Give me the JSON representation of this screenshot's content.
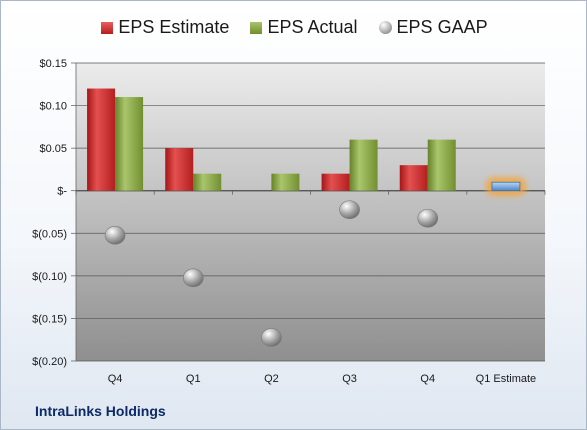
{
  "chart_data": {
    "type": "bar",
    "categories": [
      "Q4",
      "Q1",
      "Q2",
      "Q3",
      "Q4",
      "Q1 Estimate"
    ],
    "y_tick_labels": [
      "$0.15",
      "$0.10",
      "$0.05",
      "$-",
      "$(0.05)",
      "$(0.10)",
      "$(0.15)",
      "$(0.20)"
    ],
    "ylim": [
      -0.2,
      0.15
    ],
    "grid": true,
    "legend_placement": "top-center",
    "series": [
      {
        "name": "EPS Estimate",
        "kind": "bar",
        "color": "#c42a2a",
        "values": [
          0.12,
          0.05,
          null,
          0.02,
          0.03,
          0.01
        ]
      },
      {
        "name": "EPS Actual",
        "kind": "bar",
        "color": "#8aa648",
        "values": [
          0.11,
          0.02,
          0.02,
          0.06,
          0.06,
          null
        ]
      },
      {
        "name": "EPS GAAP",
        "kind": "marker",
        "color": "#9a9a9a",
        "values": [
          -0.05,
          -0.1,
          -0.17,
          -0.02,
          -0.03,
          null
        ]
      }
    ],
    "highlight_color": "#6fa8dc"
  },
  "footer": {
    "company": "IntraLinks Holdings"
  }
}
